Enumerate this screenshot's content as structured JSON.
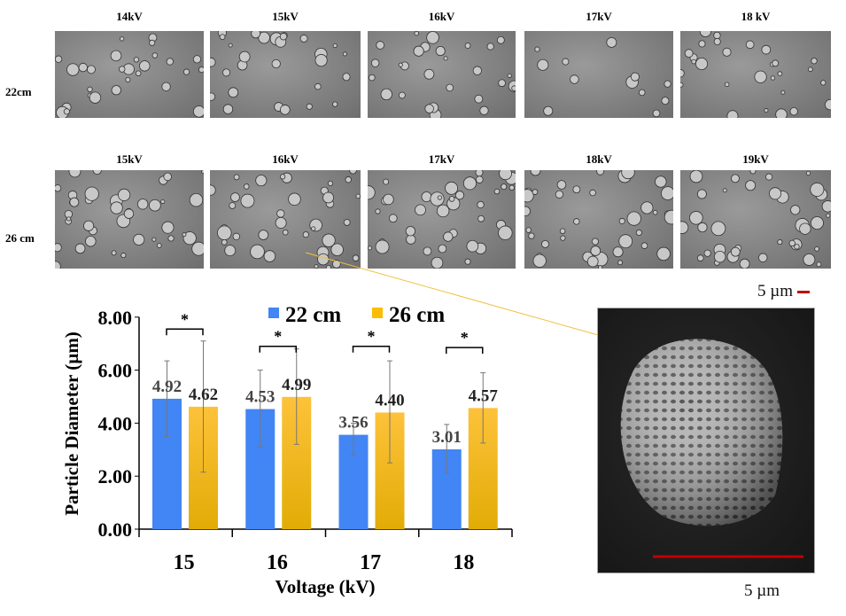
{
  "panels": {
    "row_labels": [
      "22cm",
      "26 cm"
    ],
    "row1_labels": [
      "14kV",
      "15kV",
      "16kV",
      "17kV",
      "18 kV"
    ],
    "row2_labels": [
      "15kV",
      "16kV",
      "17kV",
      "18kV",
      "19kV"
    ]
  },
  "inset": {
    "scale_top": "5 µm",
    "scale_bottom": "5 µm",
    "scale_color": "#c00000",
    "arrow_color": "#f0c040"
  },
  "chart_data": {
    "type": "bar",
    "title": "",
    "xlabel": "Voltage (kV)",
    "ylabel": "Particle Diameter (µm)",
    "categories": [
      "15",
      "16",
      "17",
      "18"
    ],
    "ylim": [
      0,
      8
    ],
    "yticks": [
      "0.00",
      "2.00",
      "4.00",
      "6.00",
      "8.00"
    ],
    "legend_position": "top-center",
    "series": [
      {
        "name": "22 cm",
        "color": "#4285f4",
        "values": [
          4.92,
          4.53,
          3.56,
          3.01
        ],
        "labels": [
          "4.92",
          "4.53",
          "3.56",
          "3.01"
        ],
        "err_low": [
          3.5,
          3.1,
          2.8,
          2.1
        ],
        "err_high": [
          6.35,
          6.0,
          4.0,
          3.95
        ]
      },
      {
        "name": "26 cm",
        "color": "#fbbc04",
        "values": [
          4.62,
          4.99,
          4.4,
          4.57
        ],
        "labels": [
          "4.62",
          "4.99",
          "4.40",
          "4.57"
        ],
        "err_low": [
          2.15,
          3.2,
          2.5,
          3.25
        ],
        "err_high": [
          7.1,
          6.8,
          6.35,
          5.9
        ]
      }
    ],
    "significance": [
      "*",
      "*",
      "*",
      "*"
    ],
    "significance_level": [
      7.55,
      6.9,
      6.9,
      6.85
    ]
  }
}
